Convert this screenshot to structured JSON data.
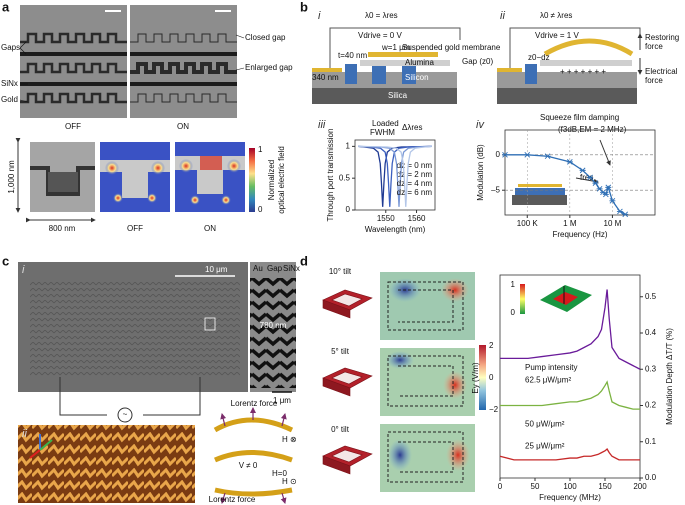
{
  "panel_labels": [
    "a",
    "b",
    "c",
    "d"
  ],
  "a": {
    "gaps": "Gaps",
    "sinx": "SiNx",
    "gold": "Gold",
    "closed_gap": "Closed gap",
    "enlarged_gap": "Enlarged gap",
    "off": "OFF",
    "on": "ON",
    "height": "1,000 nm",
    "width": "800 nm",
    "off_field": "OFF",
    "on_field": "ON",
    "colorbar_max": "1",
    "colorbar_min": "0",
    "colorbar_title_1": "Normalized",
    "colorbar_title_2": "optical electric field"
  },
  "b": {
    "sub": [
      "i",
      "ii",
      "iii",
      "iv"
    ],
    "cond_i": "λ0 = λres",
    "vdrive_i": "Vdrive = 0 V",
    "cond_ii": "λ0 ≠ λres",
    "vdrive_ii": "Vdrive = 1 V",
    "membrane": "Suspended gold membrane",
    "w": "w=1 μm",
    "t": "t=40 nm",
    "thick": "340 nm",
    "alumina": "Alumina",
    "silicon": "Silicon",
    "silica": "Silica",
    "gap": "Gap (z0)",
    "z0dz": "z0−dz",
    "restoring_1": "Restoring",
    "restoring_2": "force",
    "electrical_1": "Electrical",
    "electrical_2": "force",
    "loaded": "Loaded",
    "fwhm": "FWHM",
    "dlambda": "Δλres",
    "squeeze": "Squeeze film damping",
    "f3db": "(f3dB,EM = 2 MHz)",
    "fres": "fres"
  },
  "c": {
    "sub": [
      "i",
      "ii"
    ],
    "scale": "10 μm",
    "au": "Au",
    "gap": "Gap",
    "sinx": "SiNx",
    "dim": "780 nm",
    "scale2": "1 μm",
    "lorentz_top": "Lorentz force",
    "h_in": "H ⊗",
    "v": "V ≠ 0",
    "h0": "H=0",
    "h_out": "H ⊙",
    "lorentz_bottom": "Lorentz force"
  },
  "d": {
    "tilt10": "10° tilt",
    "tilt5": "5° tilt",
    "tilt0": "0° tilt",
    "cbar_label": "Ey (V/m)",
    "cbar_max": "2",
    "cbar_mid": "0",
    "cbar_min": "−2",
    "inset_max": "1",
    "inset_min": "0",
    "pump": "Pump intensity"
  },
  "chart_data": [
    {
      "type": "line",
      "xlabel": "Wavelength (nm)",
      "ylabel": "Through port transmission",
      "xlim": [
        1540,
        1566
      ],
      "xticks": [
        1550,
        1560
      ],
      "ylim": [
        0,
        1.1
      ],
      "yticks": [
        0,
        0.5,
        1
      ],
      "grid": false,
      "legend": "right",
      "series": [
        {
          "name": "dz = 0 nm",
          "color": "#1f3a93",
          "x": [
            1541,
            1543,
            1546,
            1547.5,
            1548.2,
            1548.6,
            1549,
            1549.4,
            1549.8,
            1550.5,
            1552,
            1555,
            1565
          ],
          "values": [
            1,
            0.99,
            0.97,
            0.91,
            0.73,
            0.42,
            0.05,
            0.42,
            0.73,
            0.91,
            0.97,
            0.99,
            1
          ]
        },
        {
          "name": "dz = 2 nm",
          "color": "#3b5fc0",
          "x": [
            1541,
            1545.3,
            1548.3,
            1549.8,
            1550.5,
            1550.9,
            1551.3,
            1551.7,
            1552.1,
            1552.8,
            1554.3,
            1557.3,
            1565
          ],
          "values": [
            1,
            0.99,
            0.97,
            0.91,
            0.73,
            0.42,
            0.05,
            0.42,
            0.73,
            0.91,
            0.97,
            0.99,
            1
          ]
        },
        {
          "name": "dz = 4 nm",
          "color": "#7a98d6",
          "x": [
            1541,
            1548.3,
            1551.3,
            1552.8,
            1553.5,
            1553.9,
            1554.3,
            1554.7,
            1555.1,
            1555.8,
            1557.3,
            1560.3,
            1565
          ],
          "values": [
            1,
            0.99,
            0.97,
            0.91,
            0.73,
            0.42,
            0.05,
            0.42,
            0.73,
            0.91,
            0.97,
            0.99,
            1
          ]
        },
        {
          "name": "dz = 6 nm",
          "color": "#b3c6e8",
          "x": [
            1541,
            1550.5,
            1553.5,
            1555,
            1555.7,
            1556.1,
            1556.5,
            1556.9,
            1557.3,
            1558,
            1559.5,
            1562.5,
            1565
          ],
          "values": [
            1,
            0.99,
            0.97,
            0.91,
            0.73,
            0.42,
            0.05,
            0.42,
            0.73,
            0.91,
            0.97,
            0.99,
            1
          ]
        }
      ]
    },
    {
      "type": "line",
      "xlabel": "Frequency (Hz)",
      "ylabel": "Modulation (dB)",
      "xscale": "log",
      "markers": true,
      "xlim": [
        30000,
        100000000
      ],
      "xticks": [
        {
          "value": 100000,
          "label": "100 K"
        },
        {
          "value": 1000000,
          "label": "1 M"
        },
        {
          "value": 10000000,
          "label": "10 M"
        }
      ],
      "ylim": [
        -8.5,
        3.5
      ],
      "yticks": [
        {
          "value": -5,
          "label": "–5"
        },
        0
      ],
      "grid": true,
      "x": [
        30000,
        100000,
        300000,
        1000000,
        2000000,
        3000000,
        4000000,
        5000000,
        6000000,
        7000000,
        8000000,
        10000000,
        15000000,
        20000000
      ],
      "series": [
        {
          "color": "#2f6fb5",
          "values": [
            0,
            0,
            -0.2,
            -1,
            -2.2,
            -3.2,
            -4,
            -4.8,
            -5.3,
            -5.6,
            -4.6,
            -6.5,
            -8,
            -8.4
          ]
        }
      ]
    },
    {
      "type": "line",
      "xlabel": "Frequency (MHz)",
      "ylabel": "Modulation Depth ΔT/T (%)",
      "yaxis_side": "right",
      "grid": false,
      "legend": "inline",
      "xlim": [
        0,
        200
      ],
      "xticks": [
        0,
        50,
        100,
        150,
        200
      ],
      "ylim": [
        0,
        0.56
      ],
      "yticks": [
        {
          "value": 0,
          "label": "0.0"
        },
        0.1,
        0.2,
        0.3,
        0.4,
        0.5
      ],
      "x": [
        0,
        20,
        40,
        60,
        80,
        100,
        110,
        120,
        130,
        140,
        145,
        150,
        153,
        156,
        160,
        170,
        180,
        190,
        200
      ],
      "series": [
        {
          "name": "62.5 μW/μm²",
          "color": "#6a1b9a",
          "values": [
            0.33,
            0.33,
            0.33,
            0.335,
            0.34,
            0.345,
            0.35,
            0.36,
            0.37,
            0.39,
            0.41,
            0.47,
            0.52,
            0.44,
            0.36,
            0.33,
            0.32,
            0.31,
            0.3
          ]
        },
        {
          "name": "50 μW/μm²",
          "color": "#7cb342",
          "values": [
            0.2,
            0.2,
            0.2,
            0.2,
            0.205,
            0.21,
            0.21,
            0.215,
            0.22,
            0.23,
            0.24,
            0.255,
            0.265,
            0.24,
            0.21,
            0.2,
            0.195,
            0.19,
            0.19
          ]
        },
        {
          "name": "25 μW/μm²",
          "color": "#c62828",
          "values": [
            0.06,
            0.05,
            0.05,
            0.05,
            0.05,
            0.055,
            0.055,
            0.06,
            0.06,
            0.065,
            0.07,
            0.075,
            0.08,
            0.07,
            0.06,
            0.05,
            0.05,
            0.05,
            0.05
          ]
        }
      ]
    }
  ]
}
